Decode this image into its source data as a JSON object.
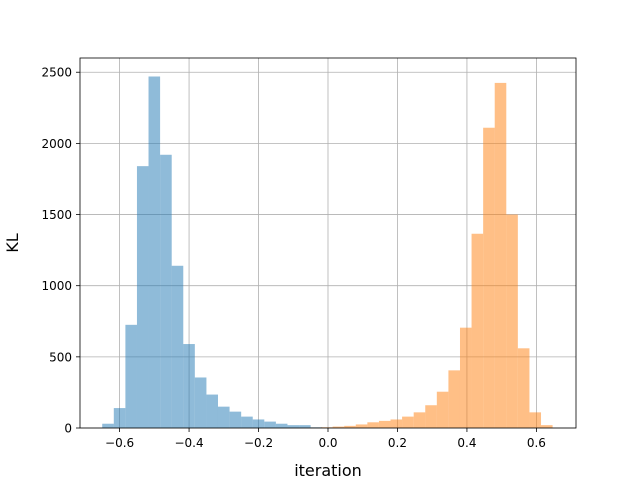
{
  "chart_data": {
    "type": "bar",
    "xlabel": "iteration",
    "ylabel": "KL",
    "xlim": [
      -0.714,
      0.714
    ],
    "ylim": [
      0,
      2600
    ],
    "xticks": [
      -0.6,
      -0.4,
      -0.2,
      0.0,
      0.2,
      0.4,
      0.6
    ],
    "xtick_labels": [
      "−0.6",
      "−0.4",
      "−0.2",
      "0.0",
      "0.2",
      "0.4",
      "0.6"
    ],
    "yticks": [
      0,
      500,
      1000,
      1500,
      2000,
      2500
    ],
    "ytick_labels": [
      "0",
      "500",
      "1000",
      "1500",
      "2000",
      "2500"
    ],
    "grid": true,
    "series": [
      {
        "color": "#1f77b4",
        "opacity": 0.5,
        "bin_width": 0.0333,
        "bin_left": [
          -0.65,
          -0.6167,
          -0.5833,
          -0.55,
          -0.5167,
          -0.4833,
          -0.45,
          -0.4167,
          -0.3833,
          -0.35,
          -0.3167,
          -0.2833,
          -0.25,
          -0.2167,
          -0.1833,
          -0.15,
          -0.1167,
          -0.0833,
          -0.05
        ],
        "values": [
          30,
          140,
          725,
          1840,
          2470,
          1920,
          1140,
          590,
          355,
          235,
          150,
          115,
          80,
          60,
          45,
          30,
          20,
          20,
          5
        ]
      },
      {
        "color": "#ff7f0e",
        "opacity": 0.5,
        "bin_width": 0.0333,
        "bin_left": [
          -0.0533,
          -0.02,
          0.0133,
          0.0467,
          0.08,
          0.1133,
          0.1467,
          0.18,
          0.2133,
          0.2467,
          0.28,
          0.3133,
          0.3467,
          0.38,
          0.4133,
          0.4467,
          0.48,
          0.5133,
          0.5467,
          0.58,
          0.6133
        ],
        "values": [
          2,
          5,
          10,
          15,
          25,
          40,
          50,
          60,
          80,
          110,
          160,
          255,
          405,
          705,
          1365,
          2110,
          2425,
          1500,
          560,
          110,
          20
        ]
      }
    ]
  }
}
